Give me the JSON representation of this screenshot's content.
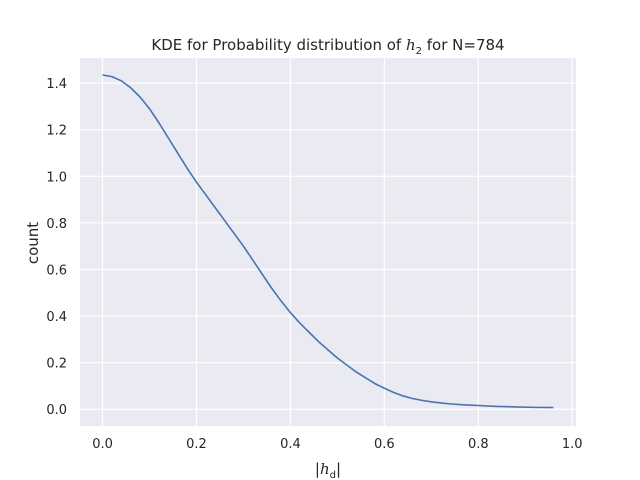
{
  "chart_data": {
    "type": "line",
    "title": {
      "prefix": "KDE for Probability distribution of ",
      "math_base": "h",
      "math_sub": "2",
      "suffix": " for N=784"
    },
    "xlabel": {
      "base": "h",
      "sub": "d",
      "bar": "|"
    },
    "ylabel": "count",
    "xlim": [
      -0.048,
      1.008
    ],
    "ylim": [
      -0.072,
      1.508
    ],
    "xticks": [
      0.0,
      0.2,
      0.4,
      0.6,
      0.8,
      1.0
    ],
    "xtick_labels": [
      "0.0",
      "0.2",
      "0.4",
      "0.6",
      "0.8",
      "1.0"
    ],
    "yticks": [
      0.0,
      0.2,
      0.4,
      0.6,
      0.8,
      1.0,
      1.2,
      1.4
    ],
    "ytick_labels": [
      "0.0",
      "0.2",
      "0.4",
      "0.6",
      "0.8",
      "1.0",
      "1.2",
      "1.4"
    ],
    "grid": true,
    "series": [
      {
        "color": "#4c72b0",
        "x": [
          0.0,
          0.02,
          0.04,
          0.06,
          0.08,
          0.1,
          0.12,
          0.14,
          0.16,
          0.18,
          0.2,
          0.22,
          0.24,
          0.26,
          0.28,
          0.3,
          0.32,
          0.34,
          0.36,
          0.38,
          0.4,
          0.42,
          0.44,
          0.46,
          0.48,
          0.5,
          0.52,
          0.54,
          0.56,
          0.58,
          0.6,
          0.62,
          0.64,
          0.66,
          0.68,
          0.7,
          0.72,
          0.74,
          0.76,
          0.78,
          0.8,
          0.84,
          0.88,
          0.92,
          0.96
        ],
        "y": [
          1.435,
          1.428,
          1.41,
          1.38,
          1.34,
          1.29,
          1.23,
          1.165,
          1.1,
          1.035,
          0.975,
          0.92,
          0.865,
          0.81,
          0.755,
          0.7,
          0.64,
          0.58,
          0.52,
          0.465,
          0.415,
          0.37,
          0.33,
          0.29,
          0.255,
          0.22,
          0.19,
          0.16,
          0.135,
          0.11,
          0.09,
          0.072,
          0.057,
          0.046,
          0.038,
          0.032,
          0.027,
          0.023,
          0.02,
          0.018,
          0.016,
          0.012,
          0.01,
          0.008,
          0.007
        ]
      }
    ]
  },
  "colors": {
    "plot_background": "#eaeaf2",
    "grid": "#ffffff",
    "line": "#4c72b0"
  }
}
